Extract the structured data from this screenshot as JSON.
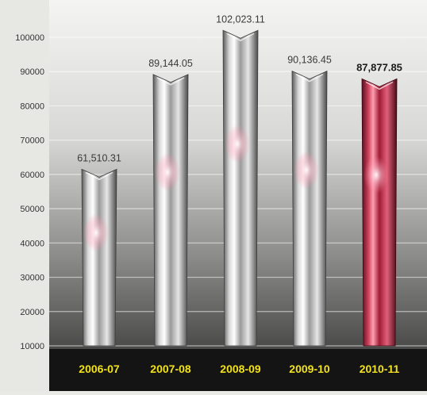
{
  "chart_data": {
    "type": "bar",
    "title": "",
    "xlabel": "",
    "ylabel": "",
    "categories": [
      "2006-07",
      "2007-08",
      "2008-09",
      "2009-10",
      "2010-11"
    ],
    "values": [
      61510.31,
      89144.05,
      102023.11,
      90136.45,
      87877.85
    ],
    "value_labels": [
      "61,510.31",
      "89,144.05",
      "102,023.11",
      "90,136.45",
      "87,877.85"
    ],
    "y_ticks": [
      10000,
      20000,
      30000,
      40000,
      50000,
      60000,
      70000,
      80000,
      90000,
      100000
    ],
    "y_tick_labels": [
      "10000",
      "20000",
      "30000",
      "40000",
      "50000",
      "60000",
      "70000",
      "80000",
      "90000",
      "100000"
    ],
    "ylim": [
      10000,
      100000
    ],
    "grid": true,
    "legend": "none",
    "colors": {
      "bar": "#b5b5b5",
      "highlight_bar": "#c0304a",
      "category_label": "#f2e21b",
      "value_label": "#3a3a3a",
      "highlight_value_label": "#1a1a1a",
      "tick_label": "#333333"
    },
    "highlighted_index": 4
  }
}
